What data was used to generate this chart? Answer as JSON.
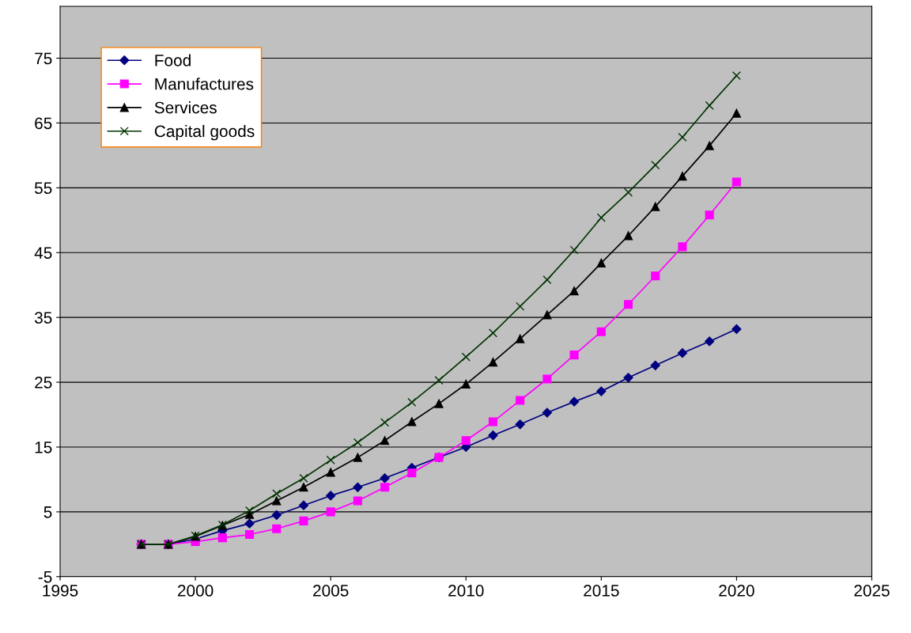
{
  "chart_data": {
    "type": "line",
    "x": [
      1998,
      1999,
      2000,
      2001,
      2002,
      2003,
      2004,
      2005,
      2006,
      2007,
      2008,
      2009,
      2010,
      2011,
      2012,
      2013,
      2014,
      2015,
      2016,
      2017,
      2018,
      2019,
      2020
    ],
    "series": [
      {
        "name": "Food",
        "color": "#000080",
        "marker": "diamond",
        "values": [
          0,
          0,
          0.8,
          2.1,
          3.2,
          4.5,
          6.0,
          7.5,
          8.8,
          10.2,
          11.8,
          13.4,
          15.0,
          16.8,
          18.5,
          20.3,
          22.0,
          23.6,
          25.7,
          27.6,
          29.5,
          31.3,
          33.2
        ]
      },
      {
        "name": "Manufactures",
        "color": "#ff00ff",
        "marker": "square",
        "values": [
          0,
          0,
          0.4,
          1.0,
          1.5,
          2.4,
          3.6,
          5.0,
          6.7,
          8.8,
          11.0,
          13.4,
          16.0,
          18.9,
          22.2,
          25.5,
          29.2,
          32.8,
          37.0,
          41.4,
          45.9,
          50.8,
          55.9
        ]
      },
      {
        "name": "Services",
        "color": "#000000",
        "marker": "triangle",
        "values": [
          0,
          0,
          1.2,
          2.9,
          4.6,
          6.7,
          8.8,
          11.1,
          13.4,
          16.0,
          18.9,
          21.7,
          24.7,
          28.1,
          31.7,
          35.4,
          39.1,
          43.4,
          47.6,
          52.1,
          56.8,
          61.5,
          66.5
        ]
      },
      {
        "name": "Capital goods",
        "color": "#003300",
        "marker": "cross",
        "values": [
          0,
          0,
          1.3,
          3.0,
          5.2,
          7.8,
          10.2,
          13.0,
          15.7,
          18.8,
          21.9,
          25.3,
          28.9,
          32.6,
          36.7,
          40.8,
          45.4,
          50.4,
          54.3,
          58.5,
          62.8,
          67.7,
          72.3
        ]
      }
    ],
    "xlim": [
      1995,
      2025
    ],
    "xticks": [
      1995,
      2000,
      2005,
      2010,
      2015,
      2020,
      2025
    ],
    "ylim": [
      -5,
      83
    ],
    "yticks": [
      -5,
      5,
      15,
      25,
      35,
      45,
      55,
      65,
      75
    ],
    "grid": "y",
    "legend": "top left",
    "line_style": "solid"
  }
}
